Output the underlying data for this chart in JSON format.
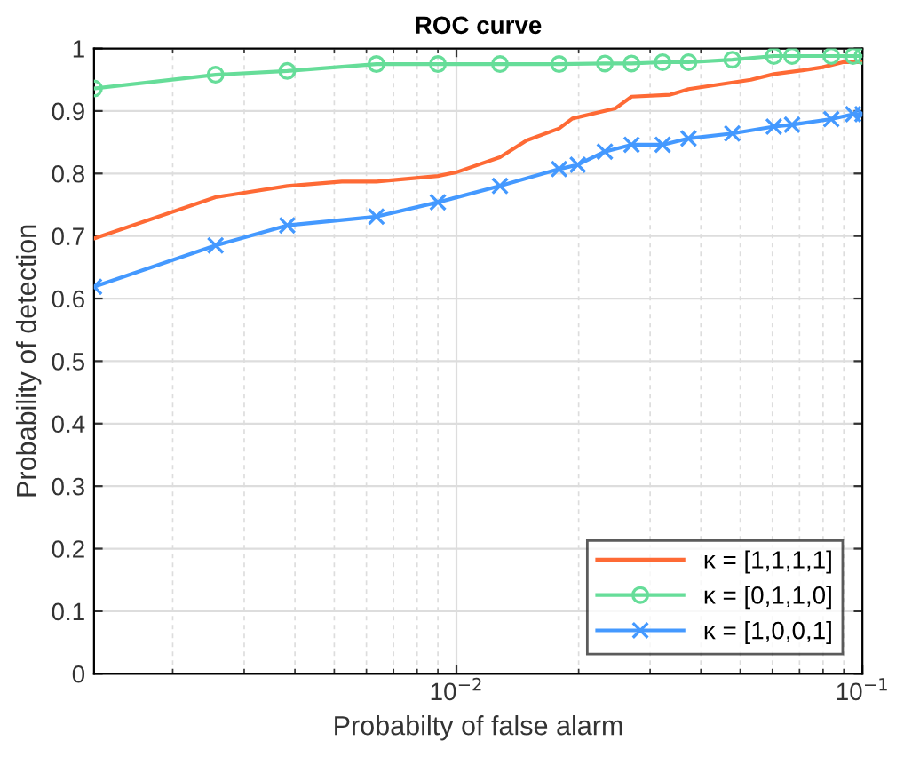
{
  "chart_data": {
    "type": "line",
    "title": "ROC curve",
    "xlabel": "Probabilty of false alarm",
    "ylabel": "Probability of detection",
    "log": "x",
    "xlim": [
      0.00128,
      0.1
    ],
    "xticks": [
      {
        "value": 0.01,
        "label": "10$^{−2}$"
      },
      {
        "value": 0.1,
        "label": "10$^{−1}$"
      }
    ],
    "ylim": [
      0,
      1
    ],
    "yticks": [
      0,
      0.1,
      0.2,
      0.3,
      0.4,
      0.5,
      0.6,
      0.7,
      0.8,
      0.9,
      1
    ],
    "grid": true,
    "legend": "bottom right",
    "series": [
      {
        "name": "κ = [1,1,1,1]",
        "color": "#fe6a35",
        "marker": "none",
        "x": [
          0.00128,
          0.00255,
          0.00383,
          0.00522,
          0.00635,
          0.009,
          0.01,
          0.0128,
          0.0149,
          0.0179,
          0.0193,
          0.0246,
          0.027,
          0.0336,
          0.0373,
          0.0531,
          0.0605,
          0.0712,
          0.0798,
          0.0895,
          0.1
        ],
        "values": [
          0.696,
          0.762,
          0.78,
          0.787,
          0.787,
          0.796,
          0.802,
          0.826,
          0.853,
          0.872,
          0.888,
          0.904,
          0.923,
          0.926,
          0.935,
          0.95,
          0.959,
          0.965,
          0.97,
          0.978,
          0.978
        ]
      },
      {
        "name": "κ = [0,1,1,0]",
        "color": "#66dd99",
        "marker": "circle",
        "x": [
          0.00128,
          0.00255,
          0.00383,
          0.00635,
          0.009,
          0.0128,
          0.0179,
          0.0232,
          0.027,
          0.0322,
          0.0373,
          0.0478,
          0.0605,
          0.0671,
          0.0838,
          0.0949,
          0.1
        ],
        "values": [
          0.936,
          0.958,
          0.964,
          0.975,
          0.975,
          0.975,
          0.975,
          0.976,
          0.976,
          0.978,
          0.978,
          0.982,
          0.988,
          0.988,
          0.988,
          0.988,
          0.988
        ]
      },
      {
        "name": "κ = [1,0,0,1]",
        "color": "#4499ff",
        "marker": "cross",
        "x": [
          0.00128,
          0.00255,
          0.00383,
          0.00635,
          0.009,
          0.0128,
          0.0179,
          0.0199,
          0.0232,
          0.027,
          0.0322,
          0.0373,
          0.0478,
          0.0605,
          0.0671,
          0.0838,
          0.0949,
          0.1
        ],
        "values": [
          0.619,
          0.685,
          0.717,
          0.731,
          0.754,
          0.78,
          0.807,
          0.814,
          0.835,
          0.846,
          0.846,
          0.856,
          0.864,
          0.875,
          0.878,
          0.887,
          0.895,
          0.895
        ]
      }
    ]
  }
}
